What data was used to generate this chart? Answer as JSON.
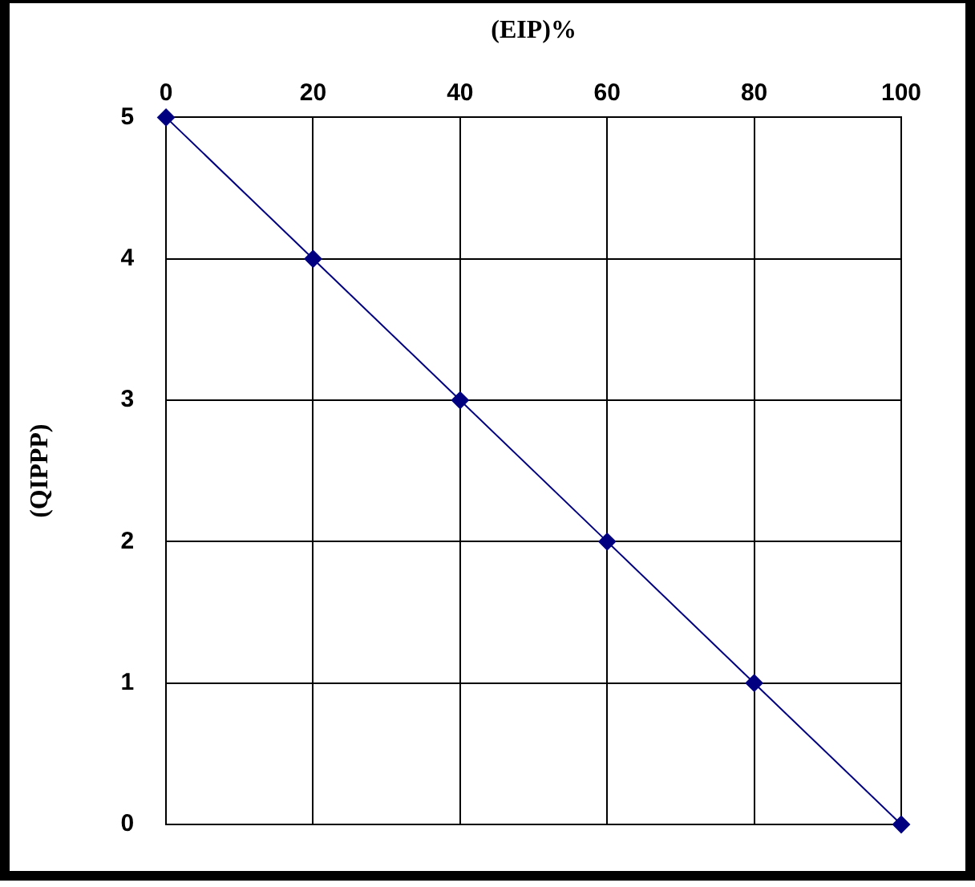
{
  "chart_data": {
    "type": "line",
    "xlabel": "(EIP)%",
    "ylabel": "(QIPPP)",
    "x": [
      0,
      20,
      40,
      60,
      80,
      100
    ],
    "series": [
      {
        "color": "#000080",
        "values": [
          5,
          4,
          3,
          2,
          1,
          0
        ]
      }
    ],
    "xlim": [
      0,
      100
    ],
    "xticks": [
      0,
      20,
      40,
      60,
      80,
      100
    ],
    "ylim": [
      0,
      5
    ],
    "yticks": [
      0,
      1,
      2,
      3,
      4,
      5
    ],
    "grid": true,
    "legend": false,
    "marker": "diamond",
    "line_style": "solid"
  }
}
